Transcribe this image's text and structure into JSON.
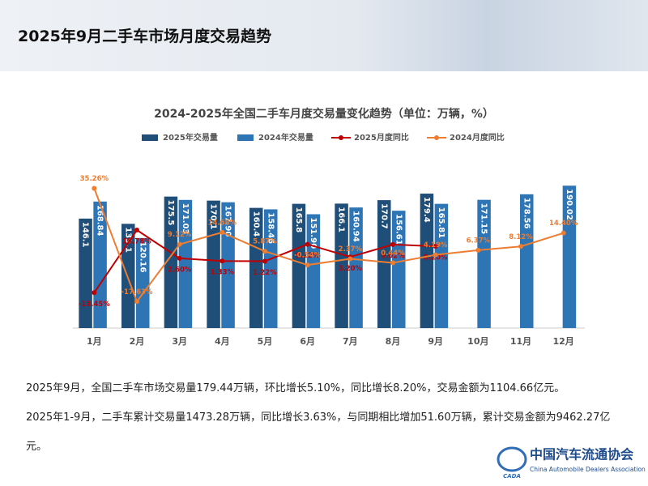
{
  "header": {
    "title": "2025年9月二手车市场月度交易趋势"
  },
  "chart_data": {
    "type": "bar",
    "title": "2024-2025年全国二手车月度交易量变化趋势（单位：万辆，%）",
    "categories": [
      "1月",
      "2月",
      "3月",
      "4月",
      "5月",
      "6月",
      "7月",
      "8月",
      "9月",
      "10月",
      "11月",
      "12月"
    ],
    "ylim": [
      0,
      200
    ],
    "y2lim": [
      -30,
      40
    ],
    "grid": false,
    "series": [
      {
        "name": "2025年交易量",
        "type": "bar",
        "color": "#1f4e79",
        "values": [
          146.1,
          139.1,
          175.5,
          170.1,
          160.4,
          165.8,
          166.1,
          170.7,
          179.4,
          null,
          null,
          null
        ]
      },
      {
        "name": "2024年交易量",
        "type": "bar",
        "color": "#2e75b6",
        "values": [
          168.84,
          120.16,
          171.03,
          167.9,
          158.46,
          151.9,
          160.94,
          156.61,
          165.81,
          171.15,
          178.56,
          190.02
        ],
        "value_labels": [
          "168.84",
          "120.16",
          "171.03",
          "167.90",
          "158.46",
          "151.90",
          "160.94",
          "156.61",
          "165.81",
          "171.15",
          "178.56",
          "190.02"
        ]
      },
      {
        "name": "2025月度同比",
        "type": "line",
        "axis": "y2",
        "color": "#c00000",
        "values": [
          -13.45,
          15.78,
          2.6,
          1.33,
          1.22,
          9.12,
          3.2,
          9.02,
          8.2,
          null,
          null,
          null
        ],
        "value_labels": [
          "-13.45%",
          "15.78%",
          "2.60%",
          "1.33%",
          "1.22%",
          "9.12%",
          "3.20%",
          "9.02%",
          "8.20%",
          null,
          null,
          null
        ]
      },
      {
        "name": "2024月度同比",
        "type": "line",
        "axis": "y2",
        "color": "#ed7d31",
        "values": [
          35.26,
          -17.63,
          9.12,
          14.68,
          5.87,
          -0.54,
          2.37,
          0.44,
          4.19,
          6.37,
          8.12,
          14.4
        ],
        "value_labels": [
          "35.26%",
          "-17.63%",
          "9.12%",
          "14.68%",
          "5.87%",
          "-0.54%",
          "2.37%",
          "0.44%",
          "4.19%",
          "6.37%",
          "8.12%",
          "14.40%"
        ]
      }
    ]
  },
  "text": {
    "paragraphs": [
      "2025年9月，全国二手车市场交易量179.44万辆，环比增长5.10%，同比增长8.20%，交易金额为1104.66亿元。",
      "2025年1-9月，二手车累计交易量1473.28万辆，同比增长3.63%，与同期相比增加51.60万辆，累计交易金额为9462.27亿元。"
    ]
  },
  "logo": {
    "name": "中国汽车流通协会",
    "english": "China Automobile Dealers Association",
    "mark": "CADA"
  }
}
